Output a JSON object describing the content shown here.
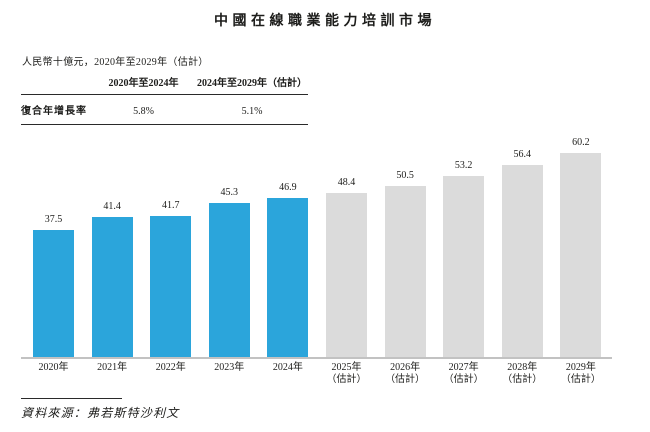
{
  "page": {
    "title": "中國在線職業能力培訓市場",
    "subtitle": "人民幣十億元，2020年至2029年（估計）",
    "source": "資料來源：弗若斯特沙利文"
  },
  "cagr_table": {
    "row_header": "復合年增長率",
    "columns": [
      "2020年至2024年",
      "2024年至2029年（估計）"
    ],
    "values": [
      "5.8%",
      "5.1%"
    ]
  },
  "colors": {
    "actual_bar": "#2BA5DB",
    "estimate_bar": "#DBDBDB",
    "axis_line": "#C2C2C2",
    "text": "#1D1D1B"
  },
  "chart_data": {
    "type": "bar",
    "title": "中國在線職業能力培訓市場",
    "ylabel": "人民幣十億元",
    "xlabel": "",
    "ylim": [
      0,
      65
    ],
    "grid": false,
    "legend": "none",
    "data_labels": true,
    "estimate_from_index": 5,
    "categories": [
      "2020年",
      "2021年",
      "2022年",
      "2023年",
      "2024年",
      "2025年（估計）",
      "2026年（估計）",
      "2027年（估計）",
      "2028年（估計）",
      "2029年（估計）"
    ],
    "values": [
      37.5,
      41.4,
      41.7,
      45.3,
      46.9,
      48.4,
      50.5,
      53.2,
      56.4,
      60.2
    ],
    "cagr_2020_2024": "5.8%",
    "cagr_2024_2029": "5.1%"
  }
}
